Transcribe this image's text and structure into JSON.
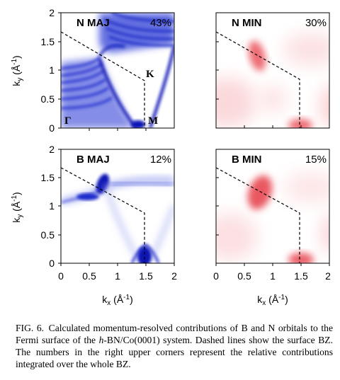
{
  "chart_data": [
    {
      "type": "heatmap",
      "panel": "N MAJ",
      "label": "N MAJ",
      "percent": "43%",
      "colormap": "#1f2fd0",
      "xlim": [
        0,
        2
      ],
      "ylim": [
        0,
        2
      ],
      "xticks": [
        "0",
        "0.5",
        "1",
        "1.5",
        "2"
      ],
      "yticks": [
        "0",
        "0.5",
        "1",
        "1.5",
        "2"
      ],
      "xlabel": "",
      "ylabel": "k_y (Å^-1)",
      "points": [
        {
          "label": "K",
          "x": 1.45,
          "y": 0.84
        },
        {
          "label": "Γ",
          "x": 0.0,
          "y": 0.0
        },
        {
          "label": "M",
          "x": 1.45,
          "y": 0.0
        }
      ]
    },
    {
      "type": "heatmap",
      "panel": "N MIN",
      "label": "N MIN",
      "percent": "30%",
      "colormap": "#e8404a",
      "xlim": [
        0,
        2
      ],
      "ylim": [
        0,
        2
      ],
      "xticks": [],
      "yticks": [],
      "xlabel": "",
      "ylabel": ""
    },
    {
      "type": "heatmap",
      "panel": "B MAJ",
      "label": "B MAJ",
      "percent": "12%",
      "colormap": "#1f2fd0",
      "xlim": [
        0,
        2
      ],
      "ylim": [
        0,
        2
      ],
      "xticks": [
        "0",
        "0.5",
        "1",
        "1.5",
        "2"
      ],
      "yticks": [
        "0",
        "0.5",
        "1",
        "1.5",
        "2"
      ],
      "xlabel": "k_x (Å^-1)",
      "ylabel": "k_y (Å^-1)"
    },
    {
      "type": "heatmap",
      "panel": "B MIN",
      "label": "B MIN",
      "percent": "15%",
      "colormap": "#e8404a",
      "xlim": [
        0,
        2
      ],
      "ylim": [
        0,
        2
      ],
      "xticks": [
        "0",
        "0.5",
        "1",
        "1.5",
        "2"
      ],
      "yticks": [],
      "xlabel": "k_x (Å^-1)",
      "ylabel": ""
    }
  ],
  "bz_boundary": [
    [
      0,
      1.67
    ],
    [
      1.45,
      0.84
    ],
    [
      1.45,
      0.0
    ]
  ],
  "caption": {
    "fig_label": "FIG. 6.",
    "text_1": "Calculated momentum-resolved contributions of B and N orbitals to the Fermi surface of the ",
    "italic": "h",
    "text_2": "-BN/Co(0001) system. Dashed lines show the surface BZ. The numbers in the right upper corners represent the relative contributions integrated over the whole BZ."
  }
}
